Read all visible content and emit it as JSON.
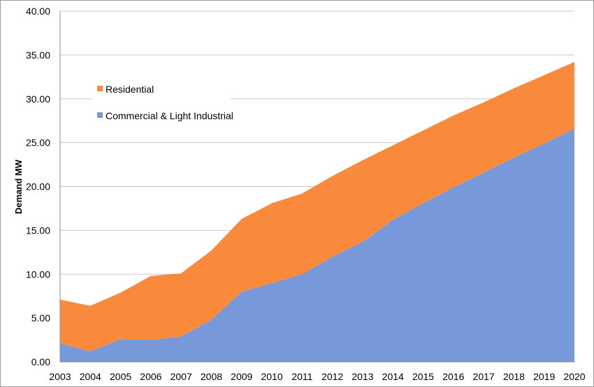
{
  "chart_data": {
    "type": "area",
    "stacked": true,
    "ylabel": "Demand MW",
    "xlabel": "",
    "ylim": [
      0,
      40
    ],
    "yticks": [
      "0.00",
      "5.00",
      "10.00",
      "15.00",
      "20.00",
      "25.00",
      "30.00",
      "35.00",
      "40.00"
    ],
    "categories": [
      "2003",
      "2004",
      "2005",
      "2006",
      "2007",
      "2008",
      "2009",
      "2010",
      "2011",
      "2012",
      "2013",
      "2014",
      "2015",
      "2016",
      "2017",
      "2018",
      "2019",
      "2020"
    ],
    "series": [
      {
        "name": "Commercial & Light Industrial",
        "color": "#7799d9",
        "values": [
          2.1,
          1.2,
          2.6,
          2.5,
          2.9,
          4.8,
          8.0,
          9.0,
          10.0,
          12.0,
          13.7,
          16.2,
          18.1,
          19.9,
          21.6,
          23.3,
          24.9,
          26.6
        ]
      },
      {
        "name": "Residential",
        "color": "#f98a3b",
        "values": [
          5.0,
          5.2,
          5.3,
          7.3,
          7.2,
          7.9,
          8.3,
          9.1,
          9.2,
          9.2,
          9.3,
          8.5,
          8.3,
          8.2,
          8.0,
          7.9,
          7.8,
          7.6
        ]
      }
    ],
    "grid": "horizontal",
    "legend_position": "upper-left"
  }
}
